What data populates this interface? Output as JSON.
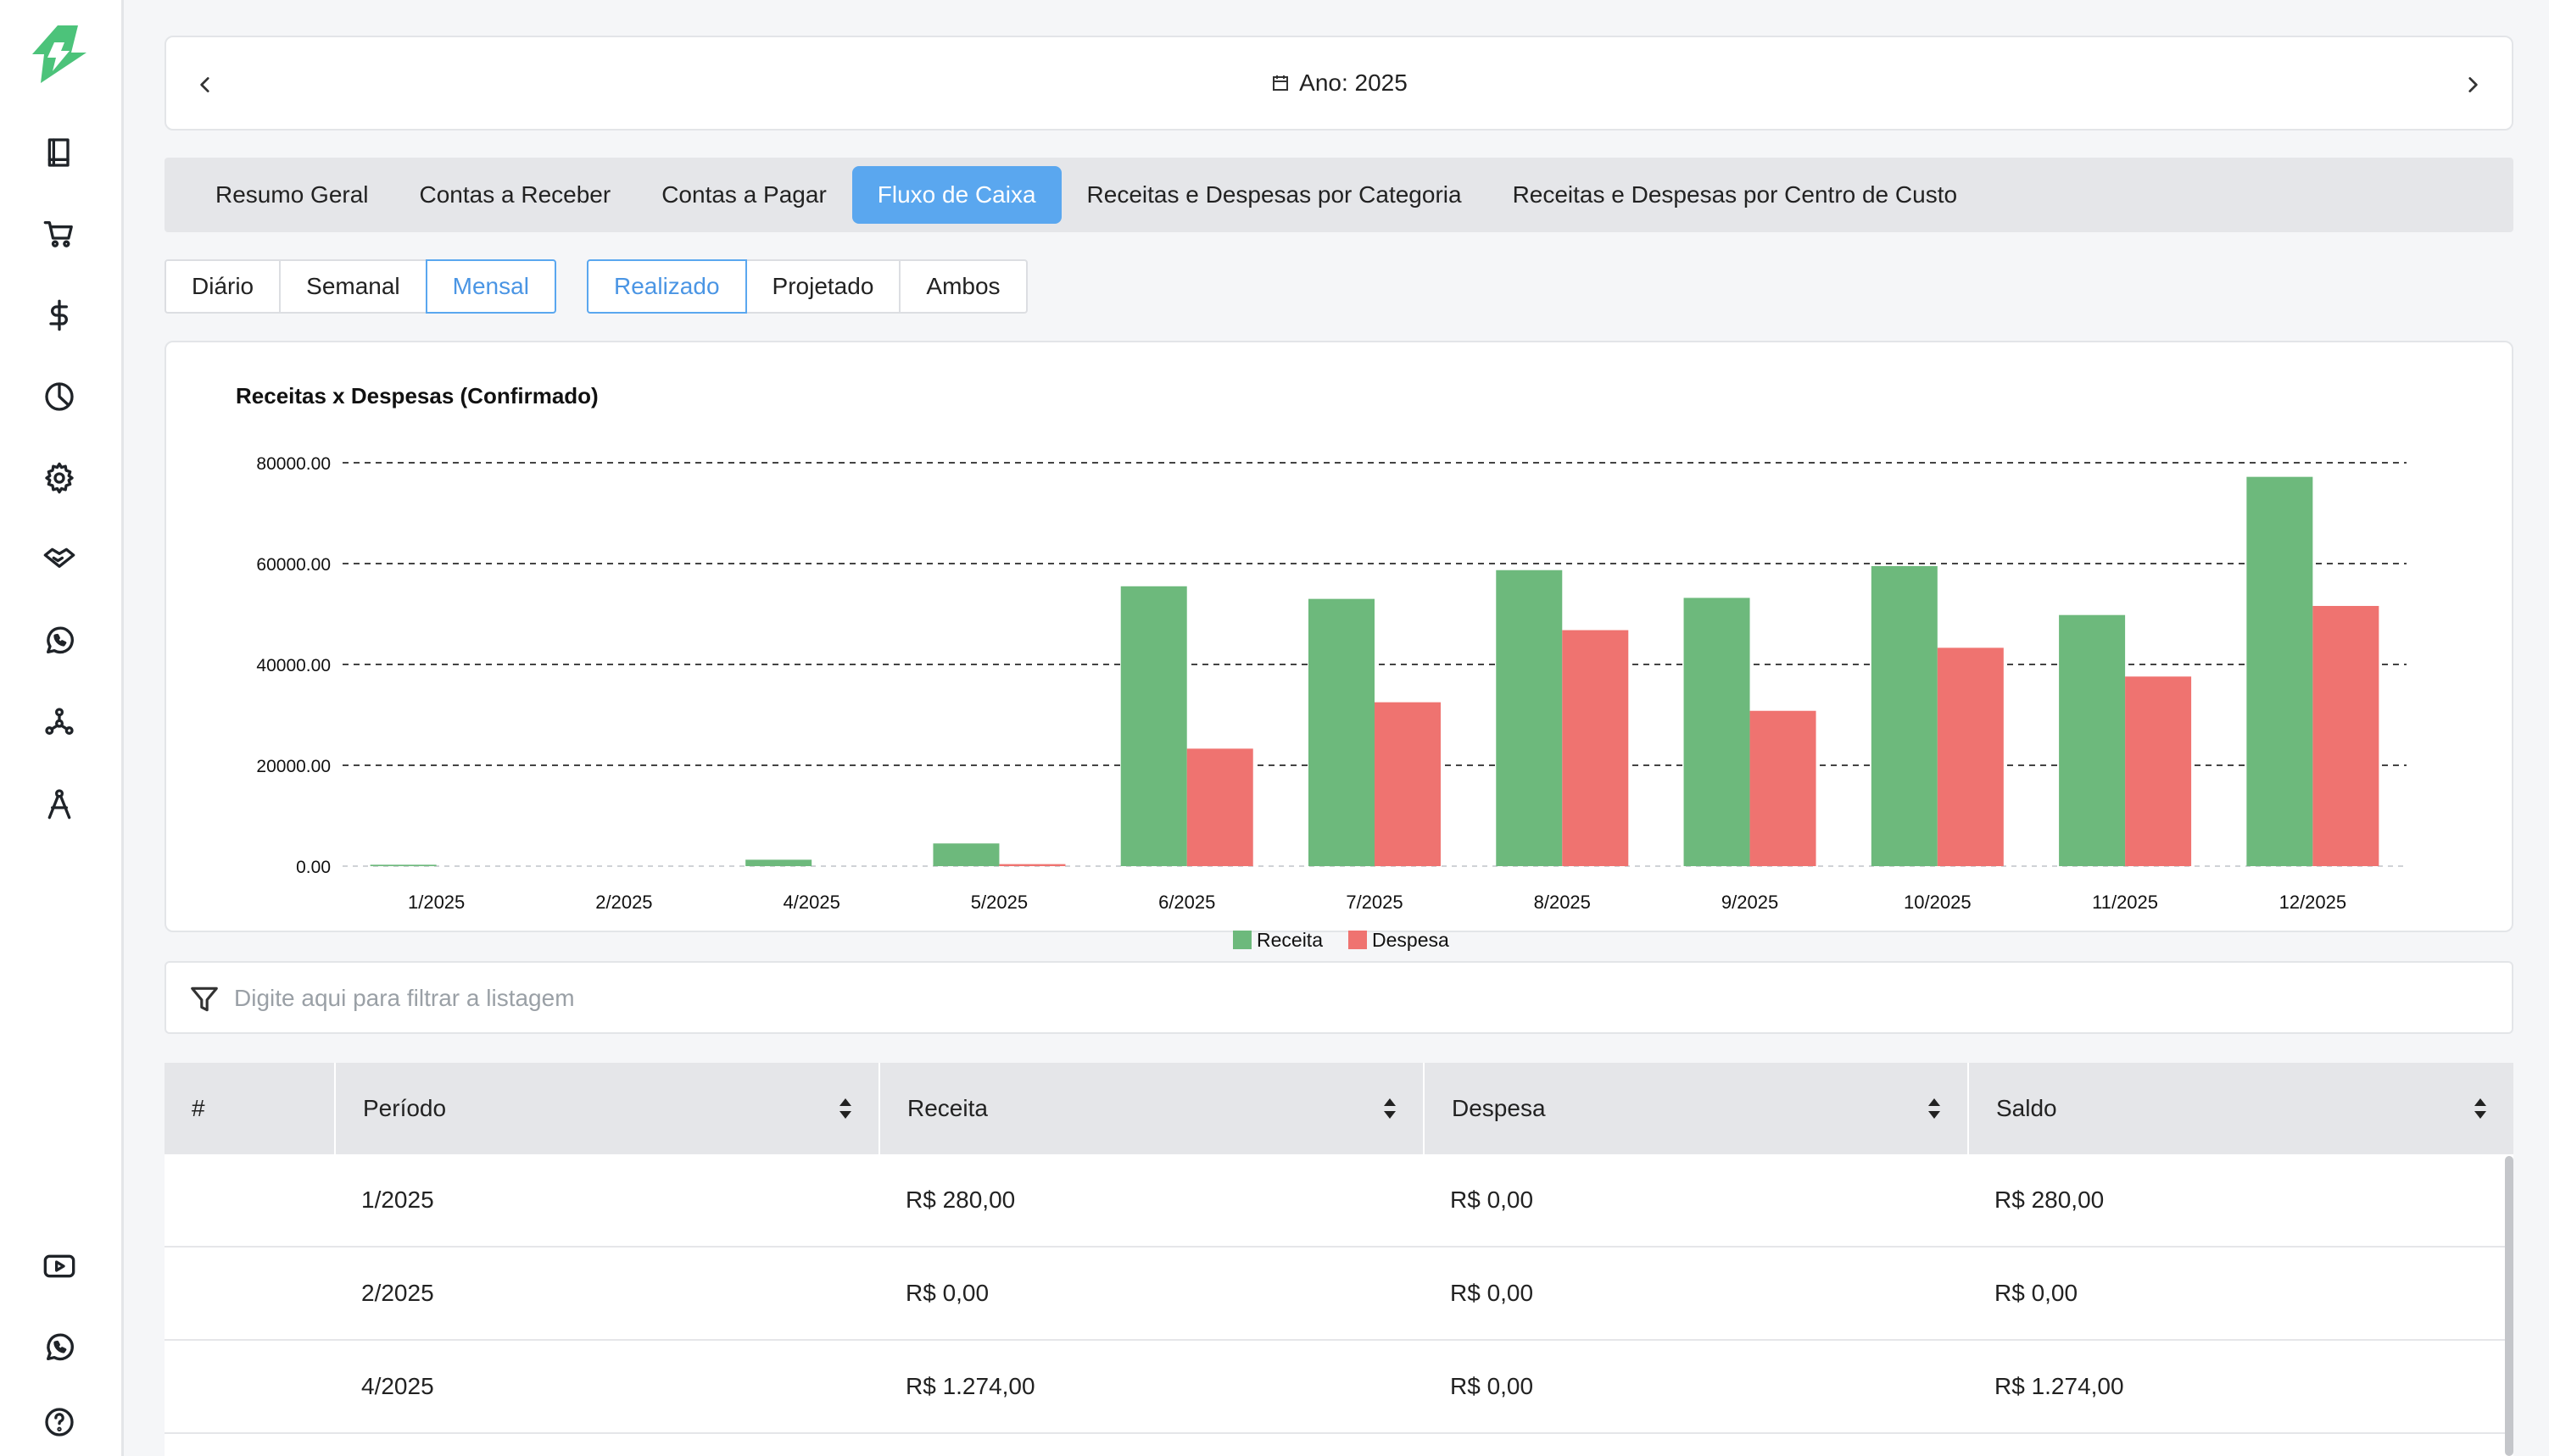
{
  "year_nav": {
    "label": "Ano: 2025"
  },
  "main_tabs": [
    {
      "label": "Resumo Geral",
      "active": false
    },
    {
      "label": "Contas a Receber",
      "active": false
    },
    {
      "label": "Contas a Pagar",
      "active": false
    },
    {
      "label": "Fluxo de Caixa",
      "active": true
    },
    {
      "label": "Receitas e Despesas por Categoria",
      "active": false
    },
    {
      "label": "Receitas e Despesas por Centro de Custo",
      "active": false
    }
  ],
  "period_options": [
    {
      "label": "Diário",
      "active": false
    },
    {
      "label": "Semanal",
      "active": false
    },
    {
      "label": "Mensal",
      "active": true
    }
  ],
  "mode_options": [
    {
      "label": "Realizado",
      "active": true
    },
    {
      "label": "Projetado",
      "active": false
    },
    {
      "label": "Ambos",
      "active": false
    }
  ],
  "chart_data": {
    "type": "bar",
    "title": "Receitas x Despesas (Confirmado)",
    "categories": [
      "1/2025",
      "2/2025",
      "4/2025",
      "5/2025",
      "6/2025",
      "7/2025",
      "8/2025",
      "9/2025",
      "10/2025",
      "11/2025",
      "12/2025"
    ],
    "series": [
      {
        "name": "Receita",
        "color": "#6db97c",
        "values": [
          280,
          0,
          1274,
          4500,
          55500,
          53000,
          58700,
          53200,
          59500,
          49800,
          77200
        ]
      },
      {
        "name": "Despesa",
        "color": "#ef7370",
        "values": [
          0,
          0,
          0,
          400,
          23300,
          32500,
          46800,
          30800,
          43300,
          37600,
          51600
        ]
      }
    ],
    "ylim": [
      0,
      80000
    ],
    "yticks": [
      "0.00",
      "20000.00",
      "40000.00",
      "60000.00",
      "80000.00"
    ],
    "grid": true,
    "legend": "bottom"
  },
  "filter": {
    "placeholder": "Digite aqui para filtrar a listagem"
  },
  "table": {
    "headers": [
      "#",
      "Período",
      "Receita",
      "Despesa",
      "Saldo"
    ],
    "rows": [
      {
        "periodo": "1/2025",
        "receita": "R$ 280,00",
        "despesa": "R$ 0,00",
        "saldo": "R$ 280,00"
      },
      {
        "periodo": "2/2025",
        "receita": "R$ 0,00",
        "despesa": "R$ 0,00",
        "saldo": "R$ 0,00"
      },
      {
        "periodo": "4/2025",
        "receita": "R$ 1.274,00",
        "despesa": "R$ 0,00",
        "saldo": "R$ 1.274,00"
      },
      {
        "periodo": "",
        "receita": "",
        "despesa": "",
        "saldo": ""
      }
    ]
  }
}
